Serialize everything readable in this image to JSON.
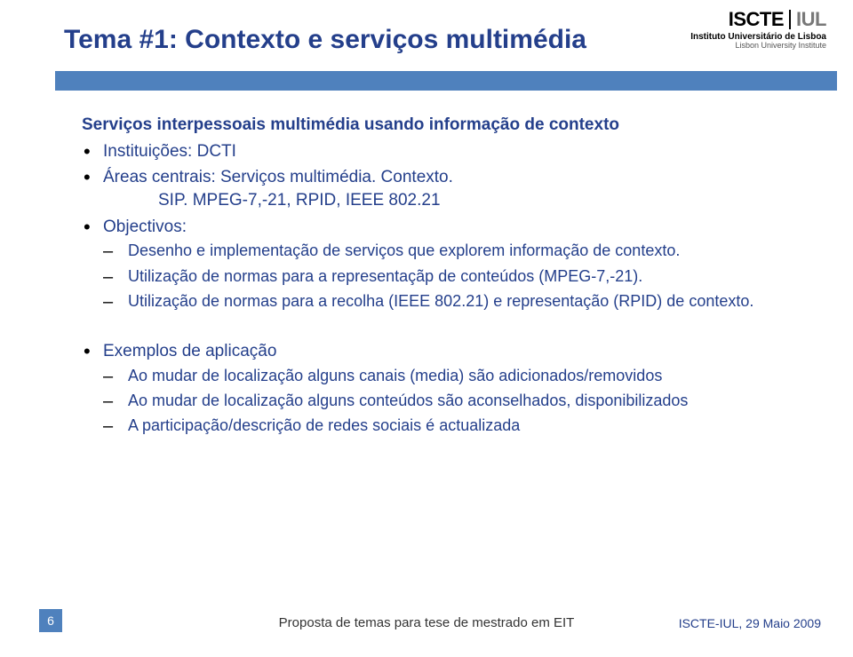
{
  "colors": {
    "accent": "#4f81bd",
    "title_text": "#243f8b",
    "body_text": "#243f8b",
    "footer_right": "#243f8b",
    "logo_grey": "#787878"
  },
  "logo": {
    "iscte": "ISCTE",
    "iul": "IUL",
    "sub1": "Instituto Universitário de Lisboa",
    "sub2": "Lisbon University Institute"
  },
  "title": "Tema #1: Contexto e serviços multimédia",
  "subtitle": "Serviços interpessoais multimédia usando informação de contexto",
  "items": {
    "inst_label": "Instituições: DCTI",
    "areas_label": "Áreas centrais: Serviços multimédia. Contexto.",
    "areas_line2": "SIP. MPEG-7,-21, RPID, IEEE 802.21",
    "obj_label": "Objectivos:",
    "obj1": "Desenho e implementação de serviços que explorem informação de contexto.",
    "obj2": "Utilização de normas para a representaçãp de conteúdos (MPEG-7,-21).",
    "obj3": "Utilização de normas para a recolha (IEEE 802.21) e representação (RPID) de contexto.",
    "ex_label": "Exemplos de aplicação",
    "ex1": "Ao mudar de localização alguns canais (media) são adicionados/removidos",
    "ex2": "Ao mudar de localização alguns conteúdos são aconselhados, disponibilizados",
    "ex3": "A participação/descrição de redes sociais é actualizada"
  },
  "footer": {
    "page_num": "6",
    "center": "Proposta de temas para tese de mestrado em EIT",
    "right": "ISCTE-IUL, 29 Maio 2009"
  },
  "typography": {
    "title_fontsize": 30,
    "body_fontsize": 19,
    "dash_fontsize": 18
  }
}
